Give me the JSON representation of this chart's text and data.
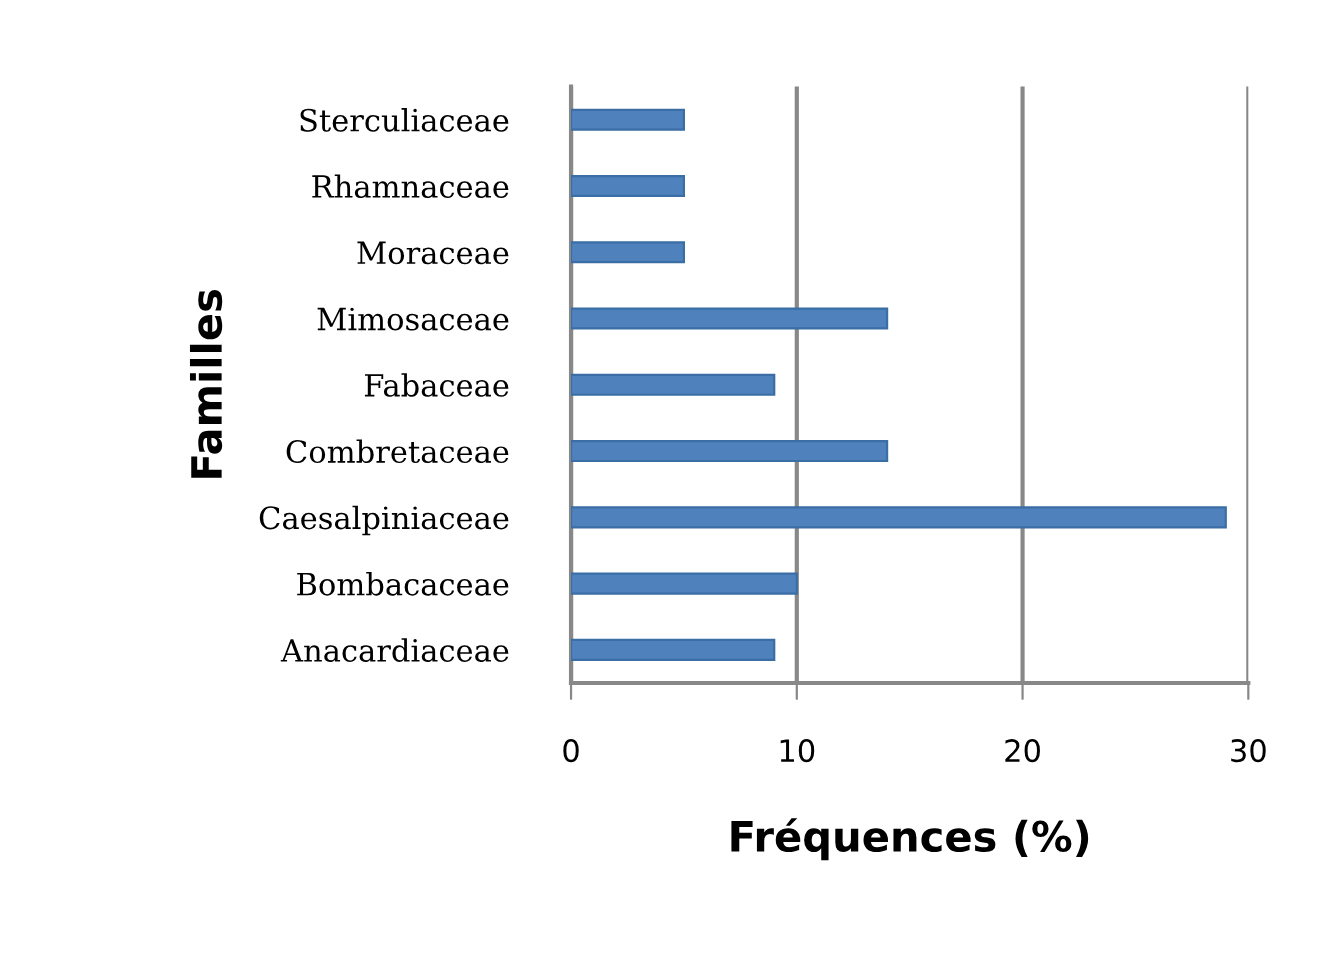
{
  "chart_data": {
    "type": "bar",
    "orientation": "horizontal",
    "xlabel": "Fréquences (%)",
    "ylabel": "Familles",
    "categories": [
      "Sterculiaceae",
      "Rhamnaceae",
      "Moraceae",
      "Mimosaceae",
      "Fabaceae",
      "Combretaceae",
      "Caesalpiniaceae",
      "Bombacaceae",
      "Anacardiaceae"
    ],
    "values": [
      5,
      5,
      5,
      14,
      9,
      14,
      29,
      10,
      9
    ],
    "color": "#4f81bd",
    "xlim": [
      0,
      30
    ],
    "xticks": [
      0,
      10,
      20,
      30
    ],
    "grid": "x",
    "legend": false
  }
}
